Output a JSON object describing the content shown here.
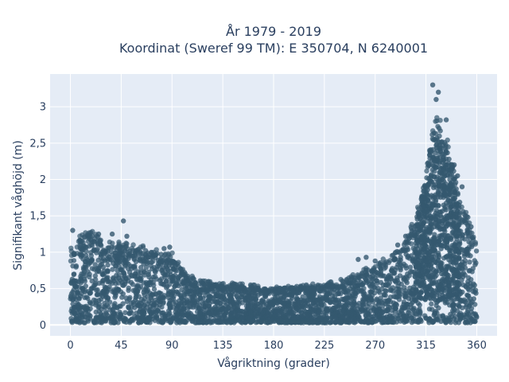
{
  "chart_data": {
    "type": "scatter",
    "title_lines": [
      "År 1979 - 2019",
      "Koordinat (Sweref 99 TM): E 350704, N 6240001"
    ],
    "xlabel": "Vågriktning (grader)",
    "ylabel": "Signifikant våghöjd (m)",
    "xlim": [
      -18,
      378
    ],
    "ylim": [
      -0.15,
      3.45
    ],
    "x_ticks": [
      0,
      45,
      90,
      135,
      180,
      225,
      270,
      315,
      360
    ],
    "x_tick_labels": [
      "0",
      "45",
      "90",
      "135",
      "180",
      "225",
      "270",
      "315",
      "360"
    ],
    "y_ticks": [
      0,
      0.5,
      1,
      1.5,
      2,
      2.5,
      3
    ],
    "y_tick_labels": [
      "0",
      "0,5",
      "1",
      "1,5",
      "2",
      "2,5",
      "3"
    ],
    "grid": true,
    "marker_color": "#34586f",
    "background_color": "#e5ecf6",
    "envelope": {
      "description": "max wave height by direction (points fill from ~0.05 m up to this envelope)",
      "x": [
        0,
        10,
        20,
        30,
        45,
        60,
        75,
        90,
        100,
        110,
        120,
        135,
        150,
        165,
        180,
        200,
        225,
        240,
        255,
        270,
        285,
        295,
        305,
        310,
        315,
        320,
        325,
        330,
        335,
        340,
        345,
        350,
        355,
        360
      ],
      "y_max": [
        1.0,
        1.2,
        1.25,
        1.1,
        1.1,
        1.05,
        1.0,
        0.95,
        0.72,
        0.62,
        0.58,
        0.55,
        0.55,
        0.52,
        0.5,
        0.52,
        0.55,
        0.6,
        0.7,
        0.8,
        0.95,
        1.1,
        1.4,
        1.7,
        2.0,
        2.6,
        2.8,
        2.6,
        2.4,
        2.1,
        1.7,
        1.5,
        1.3,
        1.1
      ]
    },
    "outliers": [
      {
        "x": 47,
        "y": 1.43
      },
      {
        "x": 2,
        "y": 1.3
      },
      {
        "x": 18,
        "y": 1.27
      },
      {
        "x": 25,
        "y": 1.25
      },
      {
        "x": 37,
        "y": 1.25
      },
      {
        "x": 50,
        "y": 1.22
      },
      {
        "x": 83,
        "y": 1.05
      },
      {
        "x": 88,
        "y": 1.07
      },
      {
        "x": 255,
        "y": 0.9
      },
      {
        "x": 262,
        "y": 0.93
      },
      {
        "x": 270,
        "y": 0.88
      },
      {
        "x": 290,
        "y": 1.1
      },
      {
        "x": 297,
        "y": 1.22
      },
      {
        "x": 304,
        "y": 1.3
      },
      {
        "x": 321,
        "y": 3.3
      },
      {
        "x": 326,
        "y": 3.2
      },
      {
        "x": 324,
        "y": 3.1
      },
      {
        "x": 333,
        "y": 2.82
      },
      {
        "x": 340,
        "y": 2.2
      },
      {
        "x": 343,
        "y": 2.05
      },
      {
        "x": 347,
        "y": 1.9
      },
      {
        "x": 350,
        "y": 1.5
      },
      {
        "x": 355,
        "y": 1.35
      }
    ]
  }
}
